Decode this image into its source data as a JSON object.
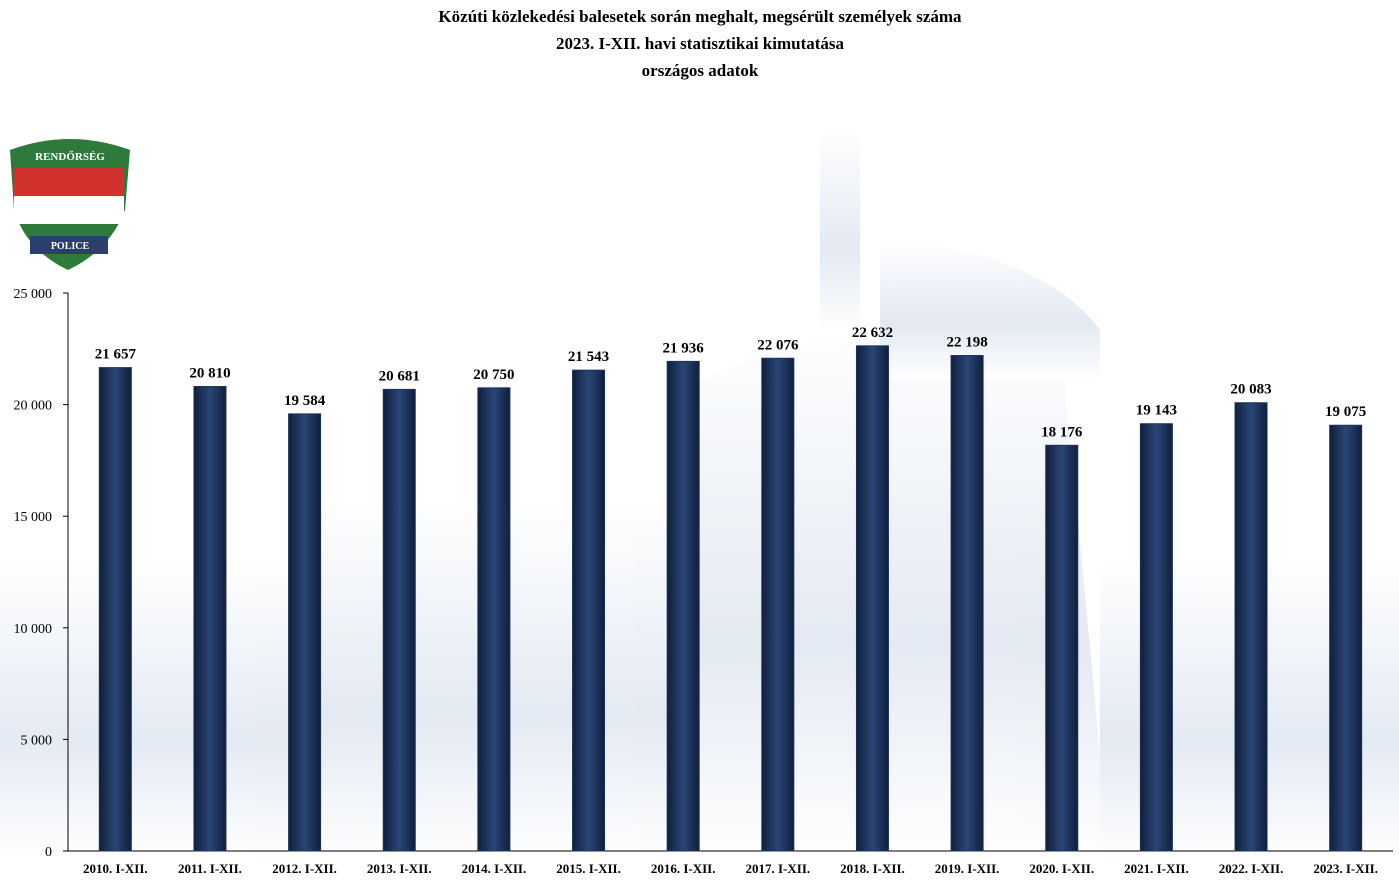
{
  "logo": {
    "top": "RENDŐRSÉG",
    "bottom": "POLICE"
  },
  "chart_data": {
    "type": "bar",
    "title": [
      "Közúti közlekedési balesetek során meghalt, megsérült személyek száma",
      "2023. I-XII. havi statisztikai kimutatása",
      "országos adatok"
    ],
    "categories": [
      "2010. I-XII.",
      "2011. I-XII.",
      "2012. I-XII.",
      "2013. I-XII.",
      "2014. I-XII.",
      "2015. I-XII.",
      "2016. I-XII.",
      "2017. I-XII.",
      "2018. I-XII.",
      "2019. I-XII.",
      "2020. I-XII.",
      "2021. I-XII.",
      "2022. I-XII.",
      "2023. I-XII."
    ],
    "values": [
      21657,
      20810,
      19584,
      20681,
      20750,
      21543,
      21936,
      22076,
      22632,
      22198,
      18176,
      19143,
      20083,
      19075
    ],
    "value_labels": [
      "21 657",
      "20 810",
      "19 584",
      "20 681",
      "20 750",
      "21 543",
      "21 936",
      "22 076",
      "22 632",
      "22 198",
      "18 176",
      "19 143",
      "20 083",
      "19 075"
    ],
    "color": "#1b315c",
    "ylim": [
      0,
      25000
    ],
    "yticks": [
      0,
      {
        "value": 5000,
        "label": "5 000"
      },
      {
        "value": 10000,
        "label": "10 000"
      },
      {
        "value": 15000,
        "label": "15 000"
      },
      {
        "value": 20000,
        "label": "20 000"
      },
      {
        "value": 25000,
        "label": "25 000"
      }
    ],
    "grid": false
  }
}
